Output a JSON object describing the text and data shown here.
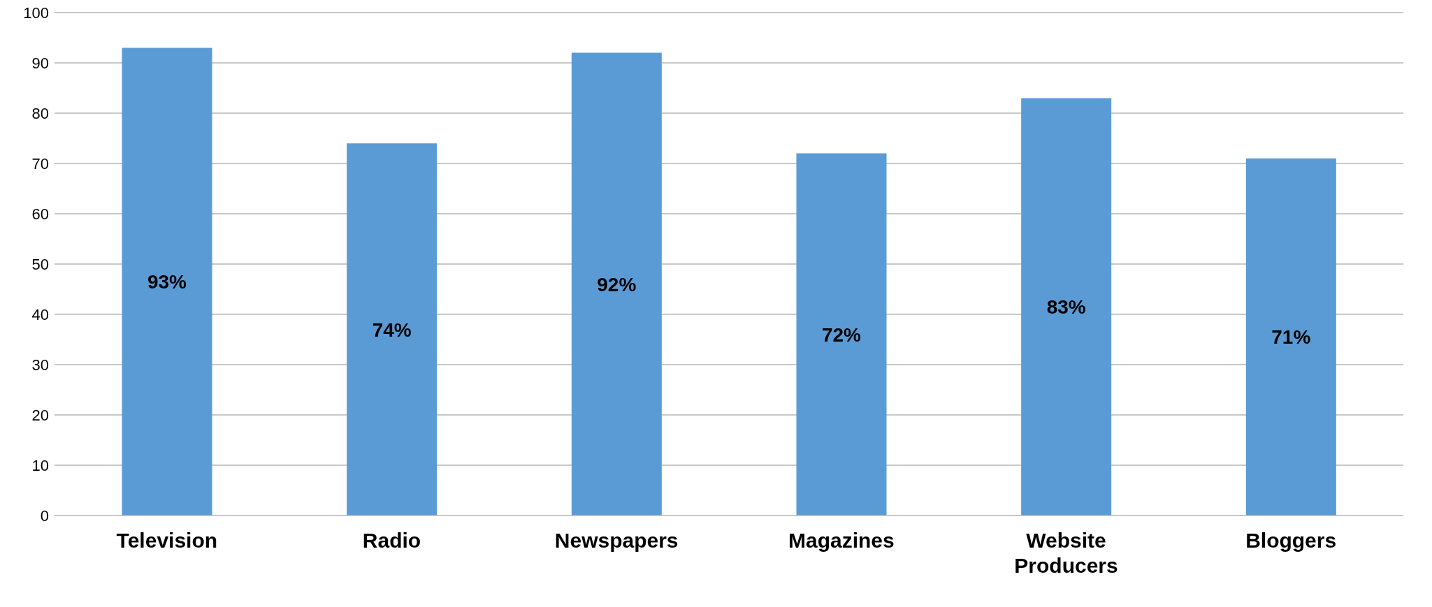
{
  "chart_data": {
    "type": "bar",
    "categories": [
      "Television",
      "Radio",
      "Newspapers",
      "Magazines",
      "Website Producers",
      "Bloggers"
    ],
    "values": [
      93,
      74,
      92,
      72,
      83,
      71
    ],
    "value_labels": [
      "93%",
      "74%",
      "92%",
      "72%",
      "83%",
      "71%"
    ],
    "color": "#5b9bd5",
    "ylim": [
      0,
      100
    ],
    "yticks": [
      0,
      10,
      20,
      30,
      40,
      50,
      60,
      70,
      80,
      90,
      100
    ],
    "grid": "y"
  }
}
